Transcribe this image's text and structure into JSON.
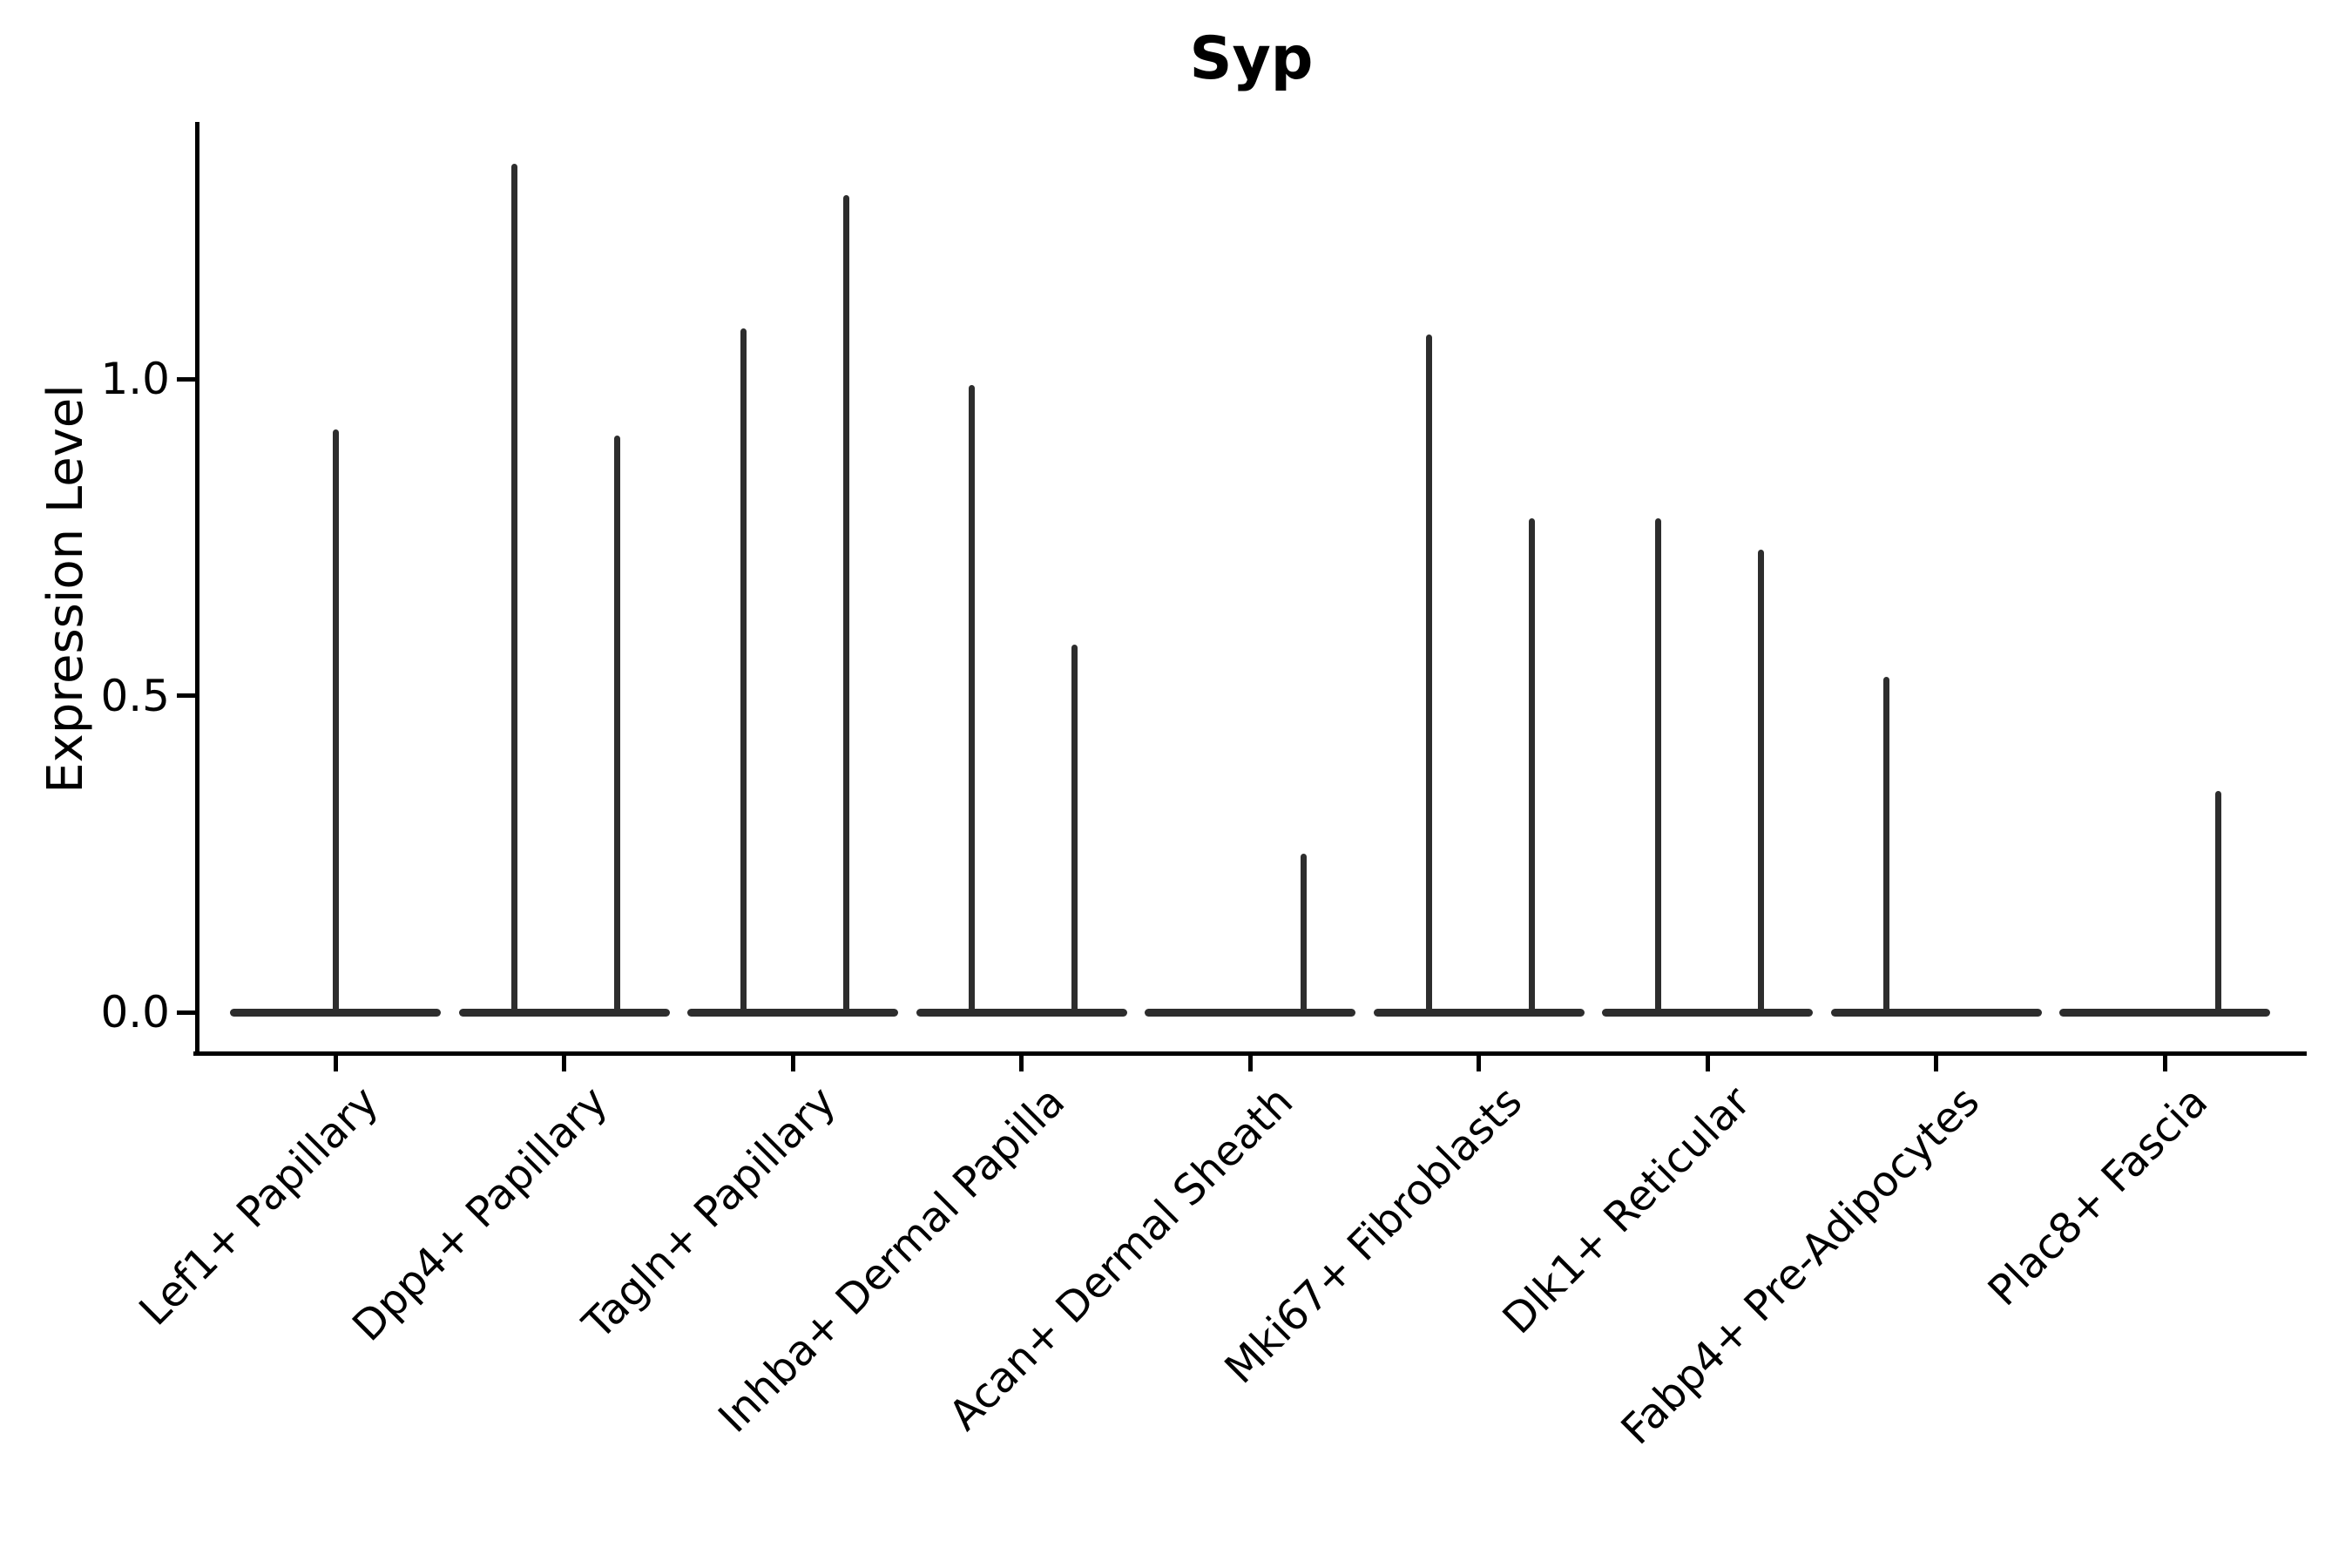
{
  "colors": {
    "ink": "#000000",
    "violin": "#2d2d2d"
  },
  "chart_data": {
    "type": "violin",
    "title": "Syp",
    "xlabel": "",
    "ylabel": "Expression Level",
    "ylim": [
      -0.06,
      1.4
    ],
    "yticks": [
      0.0,
      0.5,
      1.0
    ],
    "grid": false,
    "legend": "none",
    "categories": [
      "Lef1+ Papillary",
      "Dpp4+ Papillary",
      "Tagln+ Papillary",
      "Inhba+ Dermal Papilla",
      "Acan+ Dermal Sheath",
      "Mki67+ Fibroblasts",
      "Dlk1+ Reticular",
      "Fabp4+ Pre-Adipocytes",
      "Plac8+ Fascia"
    ],
    "baseline_value": 0.0,
    "violins": [
      {
        "category": "Lef1+ Papillary",
        "side": "center",
        "max_expression": 0.92
      },
      {
        "category": "Dpp4+ Papillary",
        "side": "left",
        "max_expression": 1.34
      },
      {
        "category": "Dpp4+ Papillary",
        "side": "right",
        "max_expression": 0.91
      },
      {
        "category": "Tagln+ Papillary",
        "side": "left",
        "max_expression": 1.08
      },
      {
        "category": "Tagln+ Papillary",
        "side": "right",
        "max_expression": 1.29
      },
      {
        "category": "Inhba+ Dermal Papilla",
        "side": "left",
        "max_expression": 0.99
      },
      {
        "category": "Inhba+ Dermal Papilla",
        "side": "right",
        "max_expression": 0.58
      },
      {
        "category": "Acan+ Dermal Sheath",
        "side": "right",
        "max_expression": 0.25
      },
      {
        "category": "Mki67+ Fibroblasts",
        "side": "left",
        "max_expression": 1.07
      },
      {
        "category": "Mki67+ Fibroblasts",
        "side": "right",
        "max_expression": 0.78
      },
      {
        "category": "Dlk1+ Reticular",
        "side": "left",
        "max_expression": 0.78
      },
      {
        "category": "Dlk1+ Reticular",
        "side": "right",
        "max_expression": 0.73
      },
      {
        "category": "Fabp4+ Pre-Adipocytes",
        "side": "left",
        "max_expression": 0.53
      },
      {
        "category": "Plac8+ Fascia",
        "side": "right",
        "max_expression": 0.35
      }
    ]
  }
}
